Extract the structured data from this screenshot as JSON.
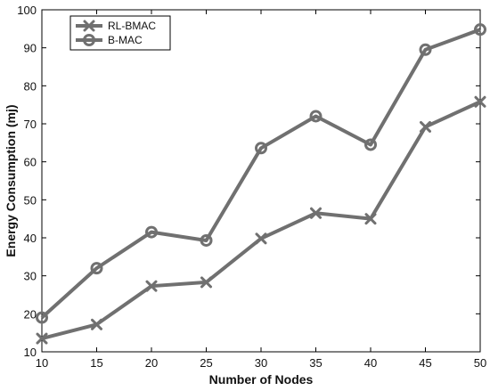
{
  "chart_data": {
    "type": "line",
    "xlabel": "Number of Nodes",
    "ylabel": "Energy Consumption (mj)",
    "x": [
      10,
      15,
      20,
      25,
      30,
      35,
      40,
      45,
      50
    ],
    "xlim": [
      10,
      50
    ],
    "ylim": [
      10,
      100
    ],
    "xticks": [
      "10",
      "15",
      "20",
      "25",
      "30",
      "35",
      "40",
      "45",
      "50"
    ],
    "yticks": [
      "10",
      "20",
      "30",
      "40",
      "50",
      "60",
      "70",
      "80",
      "90",
      "100"
    ],
    "grid": false,
    "legend_position": "top-left",
    "series": [
      {
        "name": "RL-BMAC",
        "marker": "x",
        "color": "#707070",
        "values": [
          13.5,
          17.2,
          27.3,
          28.3,
          39.8,
          46.5,
          45.0,
          69.2,
          75.8
        ]
      },
      {
        "name": "B-MAC",
        "marker": "o",
        "color": "#707070",
        "values": [
          19.0,
          32.0,
          41.5,
          39.3,
          63.6,
          72.0,
          64.5,
          89.5,
          94.8
        ]
      }
    ]
  }
}
